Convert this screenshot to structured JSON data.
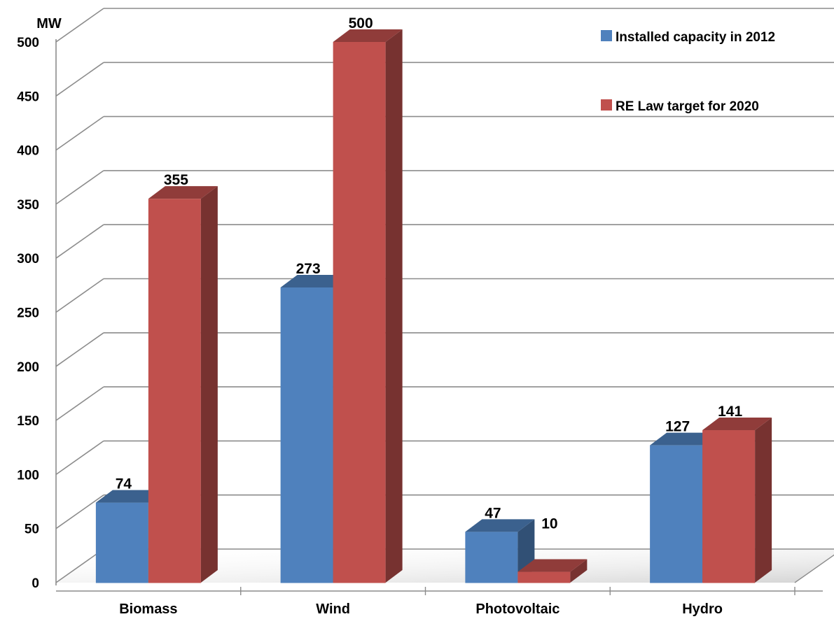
{
  "chart_data": {
    "type": "bar",
    "three_d": true,
    "y_unit": "MW",
    "categories": [
      "Biomass",
      "Wind",
      "Photovoltaic",
      "Hydro"
    ],
    "series": [
      {
        "name": "Installed capacity in 2012",
        "values": [
          74,
          273,
          47,
          127
        ],
        "color": "#4f81bd"
      },
      {
        "name": "RE Law target for 2020",
        "values": [
          355,
          500,
          10,
          141
        ],
        "color": "#c0504d"
      }
    ],
    "ylim": [
      0,
      500
    ],
    "yticks": [
      "0",
      "50",
      "100",
      "150",
      "200",
      "250",
      "300",
      "350",
      "400",
      "450",
      "500"
    ],
    "grid": true,
    "legend_position": "top-right",
    "data_labels": true
  }
}
